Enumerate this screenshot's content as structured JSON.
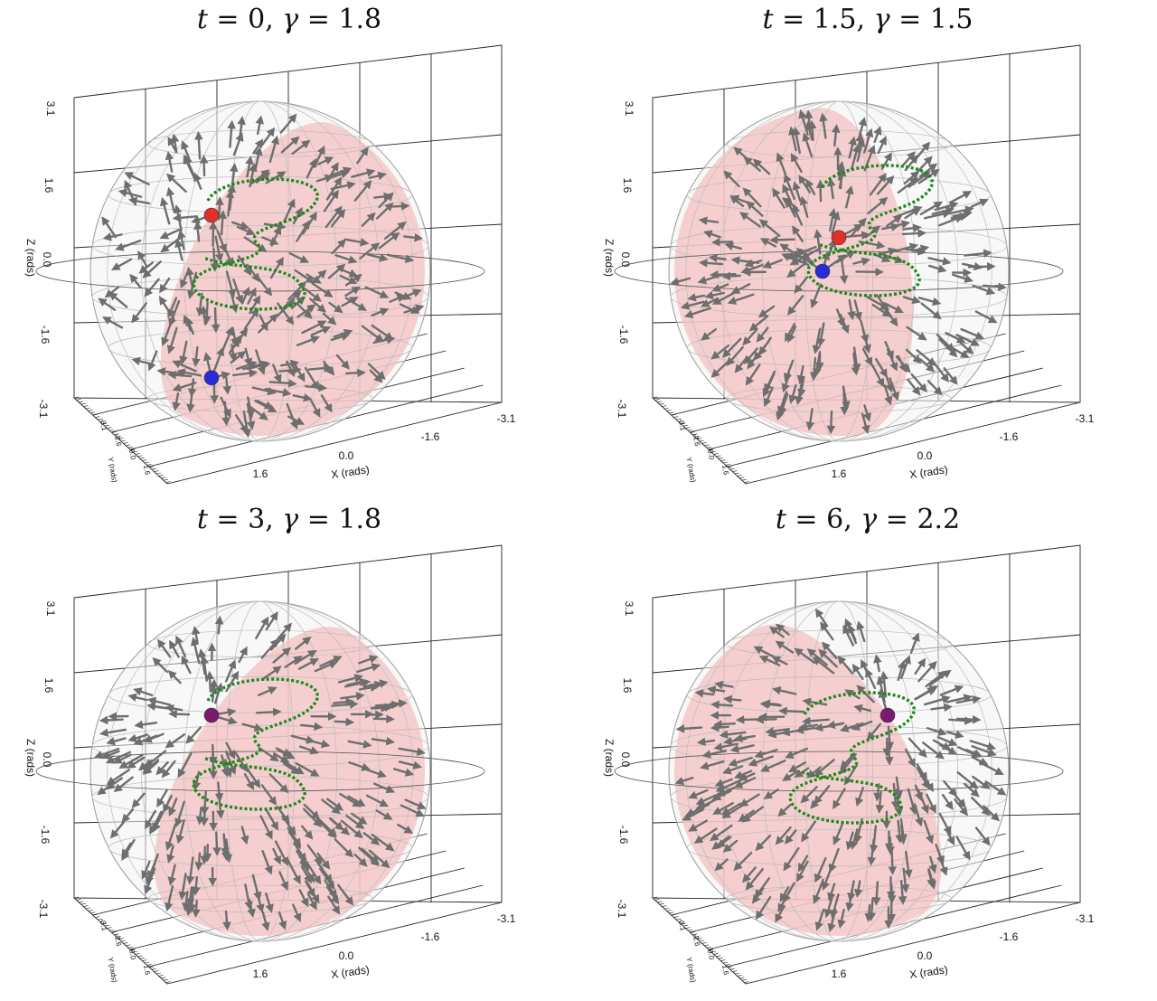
{
  "chart_data": [
    {
      "type": "3d-vector-field",
      "title": {
        "t": "0",
        "gamma": "1.8"
      },
      "xlabel": "X (rads)",
      "ylabel": "Y (rads)",
      "zlabel": "Z (rads)",
      "xticks": [
        "1.6",
        "0.0",
        "-1.6",
        "-3.1"
      ],
      "yticks": [
        "-3.1",
        "-1.6",
        "0.0",
        "1.6"
      ],
      "zticks": [
        "3.1",
        "1.6",
        "0.0",
        "-1.6",
        "-3.1"
      ],
      "xlim": [
        -3.1,
        3.1
      ],
      "ylim": [
        -3.1,
        3.1
      ],
      "zlim": [
        -3.1,
        3.1
      ],
      "points": [
        {
          "color": "red",
          "x": 0.9,
          "y": 0.0,
          "z": 1.0
        },
        {
          "color": "blue",
          "x": 0.9,
          "y": 0.0,
          "z": -1.9
        }
      ],
      "surface_tilt_deg": 28
    },
    {
      "type": "3d-vector-field",
      "title": {
        "t": "1.5",
        "gamma": "1.5"
      },
      "xlabel": "X (rads)",
      "ylabel": "Y (rads)",
      "zlabel": "Z (rads)",
      "xticks": [
        "1.6",
        "0.0",
        "-1.6",
        "-3.1"
      ],
      "yticks": [
        "-3.1",
        "-1.6",
        "0.0",
        "1.6"
      ],
      "zticks": [
        "3.1",
        "1.6",
        "0.0",
        "-1.6",
        "-3.1"
      ],
      "xlim": [
        -3.1,
        3.1
      ],
      "ylim": [
        -3.1,
        3.1
      ],
      "zlim": [
        -3.1,
        3.1
      ],
      "points": [
        {
          "color": "red",
          "x": 0.0,
          "y": 0.0,
          "z": 0.6
        },
        {
          "color": "blue",
          "x": 0.3,
          "y": 0.0,
          "z": 0.0
        }
      ],
      "surface_tilt_deg": -8
    },
    {
      "type": "3d-vector-field",
      "title": {
        "t": "3",
        "gamma": "1.8"
      },
      "xlabel": "X (rads)",
      "ylabel": "Y (rads)",
      "zlabel": "Z (rads)",
      "xticks": [
        "1.6",
        "0.0",
        "-1.6",
        "-3.1"
      ],
      "yticks": [
        "-3.1",
        "-1.6",
        "0.0",
        "1.6"
      ],
      "zticks": [
        "3.1",
        "1.6",
        "0.0",
        "-1.6",
        "-3.1"
      ],
      "xlim": [
        -3.1,
        3.1
      ],
      "ylim": [
        -3.1,
        3.1
      ],
      "zlim": [
        -3.1,
        3.1
      ],
      "points": [
        {
          "color": "purple",
          "x": 0.9,
          "y": 0.0,
          "z": 1.0
        }
      ],
      "surface_tilt_deg": 32
    },
    {
      "type": "3d-vector-field",
      "title": {
        "t": "6",
        "gamma": "2.2"
      },
      "xlabel": "X (rads)",
      "ylabel": "Y (rads)",
      "zlabel": "Z (rads)",
      "xticks": [
        "1.6",
        "0.0",
        "-1.6",
        "-3.1"
      ],
      "yticks": [
        "-3.1",
        "-1.6",
        "0.0",
        "1.6"
      ],
      "zticks": [
        "3.1",
        "1.6",
        "0.0",
        "-1.6",
        "-3.1"
      ],
      "xlim": [
        -3.1,
        3.1
      ],
      "ylim": [
        -3.1,
        3.1
      ],
      "zlim": [
        -3.1,
        3.1
      ],
      "points": [
        {
          "color": "purple",
          "x": -0.9,
          "y": 0.0,
          "z": 1.0
        }
      ],
      "surface_tilt_deg": -30
    }
  ],
  "colors": {
    "surface": "#f4c2c2",
    "arrow": "#6e6e6e",
    "curve": "#1f8a1f",
    "red": "#e0302a",
    "blue": "#2a2ad8",
    "purple": "#7a1a6e",
    "grid": "#bcbcbc",
    "box": "#222222"
  }
}
